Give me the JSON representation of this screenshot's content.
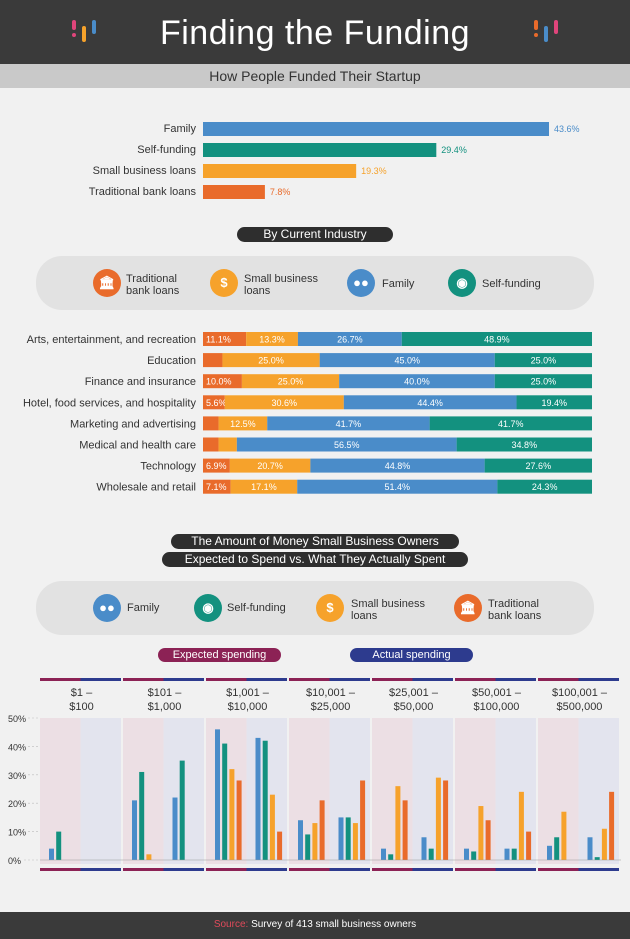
{
  "title": "Finding the Funding",
  "subtitle": "How People Funded Their Startup",
  "colors": {
    "family": "#4a8cc9",
    "self": "#13917f",
    "small": "#f6a22b",
    "bank": "#e96b2b",
    "expected": "#8c2255",
    "actual": "#2d3b8e"
  },
  "icons": {
    "bank": "bank-icon",
    "small": "money-bag-icon",
    "family": "family-icon",
    "self": "piggy-bank-icon"
  },
  "section2_title": "By Current Industry",
  "section3_title_1": "The Amount of Money Small Business Owners",
  "section3_title_2": "Expected to Spend vs. What They Actually Spent",
  "legend1": {
    "bank": "Traditional bank loans",
    "small": "Small business loans",
    "family": "Family",
    "self": "Self-funding"
  },
  "legend2": {
    "family": "Family",
    "self": "Self-funding",
    "small": "Small business loans",
    "bank": "Traditional bank loans"
  },
  "spend_labels": {
    "expected": "Expected spending",
    "actual": "Actual spending"
  },
  "footer": {
    "source_label": "Source:",
    "source_text": "Survey of 413 small business owners"
  },
  "chart_data": [
    {
      "type": "bar",
      "orientation": "horizontal",
      "categories": [
        "Family",
        "Self-funding",
        "Small business loans",
        "Traditional bank loans"
      ],
      "values": [
        43.6,
        29.4,
        19.3,
        7.8
      ],
      "labels": [
        "43.6%",
        "29.4%",
        "19.3%",
        "7.8%"
      ]
    },
    {
      "type": "bar",
      "stacked": true,
      "orientation": "horizontal",
      "title": "By Current Industry",
      "categories": [
        "Arts, entertainment, and recreation",
        "Education",
        "Finance and insurance",
        "Hotel, food services, and hospitality",
        "Marketing and advertising",
        "Medical and health care",
        "Technology",
        "Wholesale and retail"
      ],
      "series": [
        {
          "name": "Traditional bank loans",
          "values": [
            11.1,
            5,
            10.0,
            5.6,
            4,
            4,
            6.9,
            7.1
          ],
          "labels": [
            "11.1%",
            "",
            "10.0%",
            "5.6%",
            "",
            "",
            "6.9%",
            "7.1%"
          ]
        },
        {
          "name": "Small business loans",
          "values": [
            13.3,
            25.0,
            25.0,
            30.6,
            12.5,
            4.7,
            20.7,
            17.1
          ],
          "labels": [
            "13.3%",
            "25.0%",
            "25.0%",
            "30.6%",
            "12.5%",
            "",
            "20.7%",
            "17.1%"
          ]
        },
        {
          "name": "Family",
          "values": [
            26.7,
            45.0,
            40.0,
            44.4,
            41.7,
            56.5,
            44.8,
            51.4
          ],
          "labels": [
            "26.7%",
            "45.0%",
            "40.0%",
            "44.4%",
            "41.7%",
            "56.5%",
            "44.8%",
            "51.4%"
          ]
        },
        {
          "name": "Self-funding",
          "values": [
            48.9,
            25.0,
            25.0,
            19.4,
            41.7,
            34.8,
            27.6,
            24.3
          ],
          "labels": [
            "48.9%",
            "25.0%",
            "25.0%",
            "19.4%",
            "41.7%",
            "34.8%",
            "27.6%",
            "24.3%"
          ]
        }
      ]
    },
    {
      "type": "bar",
      "title": "The Amount of Money Small Business Owners Expected to Spend vs. What They Actually Spent",
      "categories": [
        "$1 –\n$100",
        "$101 –\n$1,000",
        "$1,001 –\n$10,000",
        "$10,001 –\n$25,000",
        "$25,001 –\n$50,000",
        "$50,001 –\n$100,000",
        "$100,001 –\n$500,000"
      ],
      "yticks": [
        "50%",
        "40%",
        "30%",
        "20%",
        "10%",
        "0%"
      ],
      "ylim": [
        0,
        50
      ],
      "series_order": [
        "Family",
        "Self-funding",
        "Small business loans",
        "Traditional bank loans"
      ],
      "expected": [
        [
          4,
          10,
          0,
          0
        ],
        [
          21,
          31,
          2,
          0
        ],
        [
          46,
          41,
          32,
          28
        ],
        [
          14,
          9,
          13,
          21
        ],
        [
          4,
          2,
          26,
          21
        ],
        [
          4,
          3,
          19,
          14
        ],
        [
          5,
          8,
          17,
          0
        ]
      ],
      "actual": [
        [
          0,
          0,
          0,
          0
        ],
        [
          22,
          35,
          0,
          0
        ],
        [
          43,
          42,
          23,
          10
        ],
        [
          15,
          15,
          13,
          28
        ],
        [
          8,
          4,
          29,
          28
        ],
        [
          4,
          4,
          24,
          10
        ],
        [
          8,
          1,
          11,
          24
        ]
      ]
    }
  ]
}
